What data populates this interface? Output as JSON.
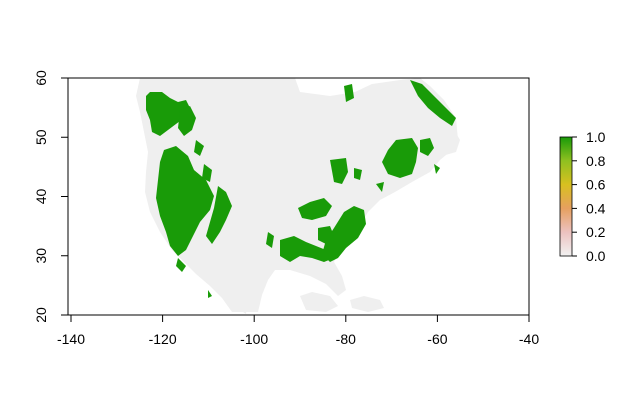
{
  "map": {
    "x_axis": {
      "range": [
        -140,
        -40
      ],
      "ticks": [
        -140,
        -120,
        -100,
        -80,
        -60,
        -40
      ]
    },
    "y_axis": {
      "range": [
        20,
        60
      ],
      "ticks": [
        20,
        30,
        40,
        50,
        60
      ]
    },
    "colorbar": {
      "range": [
        0.0,
        1.0
      ],
      "tick_labels": [
        "0.0",
        "0.2",
        "0.4",
        "0.6",
        "0.8",
        "1.0"
      ],
      "palette": [
        "#f2f2f2",
        "#ecc2c0",
        "#e6a060",
        "#d8c020",
        "#8fc020",
        "#189a08"
      ]
    },
    "colors": {
      "land": "#efefef",
      "high_value": "#199b08",
      "frame": "#000000"
    }
  }
}
